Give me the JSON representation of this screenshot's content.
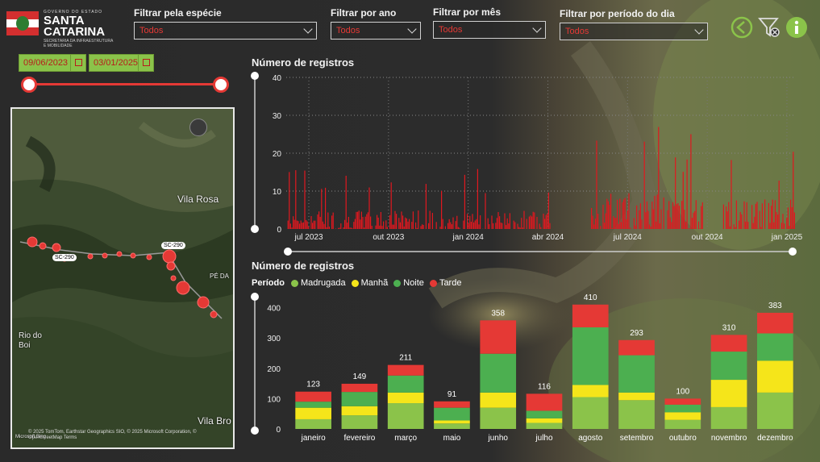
{
  "branding": {
    "gov_line": "GOVERNO DO ESTADO",
    "name_line1": "SANTA",
    "name_line2": "CATARINA",
    "sub_line": "SECRETARIA DA INFRAESTRUTURA E MOBILIDADE"
  },
  "filters": [
    {
      "label": "Filtrar pela espécie",
      "value": "Todos"
    },
    {
      "label": "Filtrar por ano",
      "value": "Todos"
    },
    {
      "label": "Filtrar por mês",
      "value": "Todos"
    },
    {
      "label": "Filtrar por período do dia",
      "value": "Todos"
    }
  ],
  "date_range": {
    "start": "09/06/2023",
    "end": "03/01/2025"
  },
  "toolbar": {
    "back_icon": "back-arrow-icon",
    "clear_filter_icon": "filter-clear-icon",
    "info_icon": "info-icon"
  },
  "map": {
    "labels": [
      "Vila Rosa",
      "PÉ DA",
      "Rio do Boi",
      "Vila Bro",
      "SC-290",
      "SC-290"
    ],
    "credit": "© 2025 TomTom, Earthstar Geographics SIO, © 2025 Microsoft Corporation, © OpenStreetMap  Terms",
    "bing": "Microsoft Bing"
  },
  "colors": {
    "madrugada": "#8bc34a",
    "manha": "#f5e51a",
    "noite": "#4caf50",
    "tarde": "#e53935",
    "bar_red": "#e0181f"
  },
  "chart_data": [
    {
      "type": "bar",
      "title": "Número de registros",
      "xlabel": "",
      "ylabel": "",
      "x_ticks": [
        "jul 2023",
        "out 2023",
        "jan 2024",
        "abr 2024",
        "jul 2024",
        "out 2024",
        "jan 2025"
      ],
      "y_ticks": [
        0,
        10,
        20,
        30,
        40
      ],
      "ylim": [
        0,
        40
      ],
      "grid": true,
      "series": [
        {
          "values_daily_segments": [
            {
              "period": "2023-06 to 2024-04",
              "typical": 5,
              "max": 16
            },
            {
              "period": "2024-06 to 2024-09",
              "typical": 10,
              "max": 38
            },
            {
              "period": "2024-09 to 2024-10",
              "typical": 8,
              "max": 30
            },
            {
              "period": "2024-11 to 2025-01",
              "typical": 8,
              "max": 23
            }
          ]
        }
      ]
    },
    {
      "type": "bar",
      "title": "Número de registros",
      "legend_title": "Período",
      "legend": [
        "Madrugada",
        "Manhã",
        "Noite",
        "Tarde"
      ],
      "categories": [
        "janeiro",
        "fevereiro",
        "março",
        "maio",
        "junho",
        "julho",
        "agosto",
        "setembro",
        "outubro",
        "novembro",
        "dezembro"
      ],
      "totals": [
        123,
        149,
        211,
        91,
        358,
        116,
        410,
        293,
        100,
        310,
        383
      ],
      "series": [
        {
          "name": "Madrugada",
          "values": [
            32,
            45,
            85,
            18,
            70,
            20,
            105,
            95,
            30,
            72,
            120
          ]
        },
        {
          "name": "Manhã",
          "values": [
            38,
            30,
            35,
            10,
            50,
            15,
            40,
            25,
            25,
            90,
            105
          ]
        },
        {
          "name": "Noite",
          "values": [
            20,
            47,
            56,
            42,
            128,
            25,
            190,
            123,
            25,
            93,
            90
          ]
        },
        {
          "name": "Tarde",
          "values": [
            33,
            27,
            35,
            21,
            110,
            56,
            75,
            50,
            20,
            55,
            68
          ]
        }
      ],
      "y_ticks": [
        0,
        100,
        200,
        300,
        400
      ],
      "ylim": [
        0,
        420
      ]
    }
  ]
}
